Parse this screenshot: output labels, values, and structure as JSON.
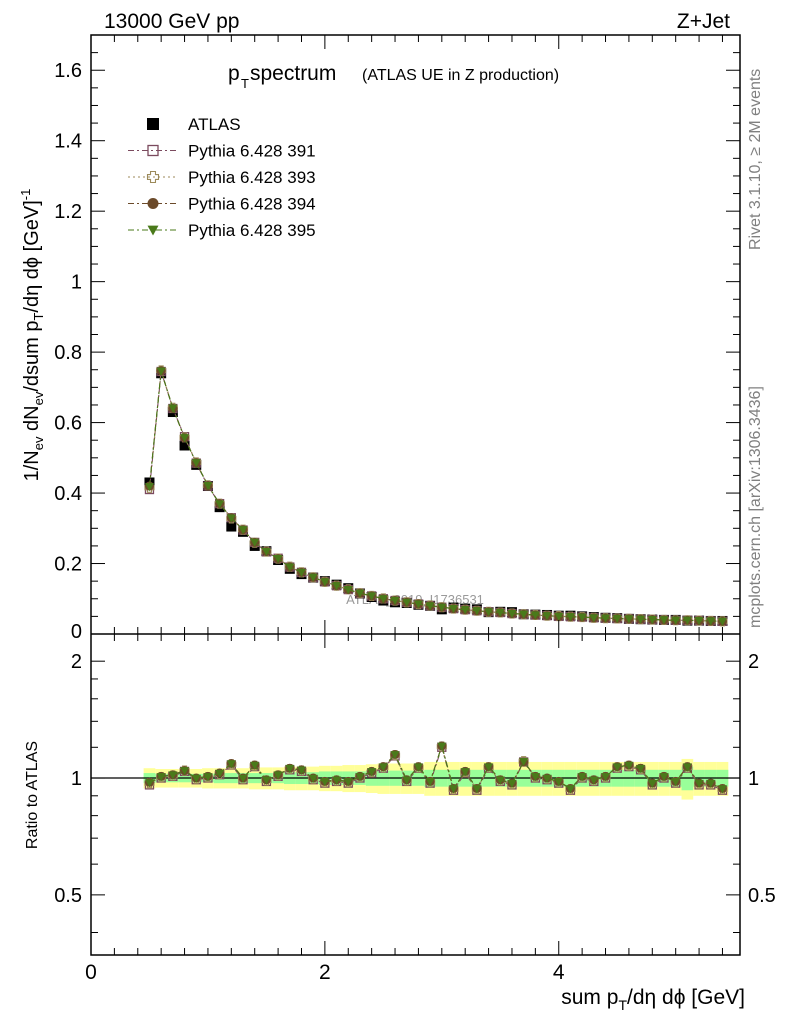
{
  "header": {
    "left": "13000 GeV pp",
    "right": "Z+Jet"
  },
  "title": {
    "main": "p",
    "main_sub": "T",
    "main_rest": " spectrum",
    "paren": "(ATLAS UE in Z production)"
  },
  "side_labels": {
    "rivet": "Rivet 3.1.10, ≥ 2M events",
    "mcplots": "mcplots.cern.ch [arXiv:1306.3436]"
  },
  "watermark": "ATLAS_2019_I1736531",
  "axes": {
    "xlabel": "sum p_T/dη dϕ [GeV]",
    "ylabel_top": "1/N_ev dN_ev/dsum p_T/dη dϕ [GeV]^-1",
    "ylabel_bottom": "Ratio to ATLAS"
  },
  "legend": [
    {
      "label": "ATLAS",
      "marker": "filled-square",
      "color": "#000000"
    },
    {
      "label": "Pythia 6.428 391",
      "marker": "open-square",
      "color": "#7b4a5e"
    },
    {
      "label": "Pythia 6.428 393",
      "marker": "open-cross",
      "color": "#9c8a5a"
    },
    {
      "label": "Pythia 6.428 394",
      "marker": "filled-circle",
      "color": "#6b4a2a"
    },
    {
      "label": "Pythia 6.428 395",
      "marker": "filled-triangle-down",
      "color": "#4a7a1a"
    }
  ],
  "chart_data": [
    {
      "type": "scatter",
      "panel": "main",
      "xlim": [
        0,
        5.55
      ],
      "ylim": [
        0,
        1.7
      ],
      "x_ticks": [
        0,
        2,
        4
      ],
      "y_ticks": [
        0.2,
        0.4,
        0.6,
        0.8,
        1,
        1.2,
        1.4,
        1.6
      ],
      "y_tick_labels": [
        "0.2",
        "0.4",
        "0.6",
        "0.8",
        "1",
        "1.2",
        "1.4",
        "1.6"
      ],
      "x": [
        0.5,
        0.6,
        0.7,
        0.8,
        0.9,
        1.0,
        1.1,
        1.2,
        1.3,
        1.4,
        1.5,
        1.6,
        1.7,
        1.8,
        1.9,
        2.0,
        2.1,
        2.2,
        2.3,
        2.4,
        2.5,
        2.6,
        2.7,
        2.8,
        2.9,
        3.0,
        3.1,
        3.2,
        3.3,
        3.4,
        3.5,
        3.6,
        3.7,
        3.8,
        3.9,
        4.0,
        4.1,
        4.2,
        4.3,
        4.4,
        4.5,
        4.6,
        4.7,
        4.8,
        4.9,
        5.0,
        5.1,
        5.2,
        5.3,
        5.4
      ],
      "series": [
        {
          "name": "ATLAS",
          "values": [
            0.43,
            0.74,
            0.63,
            0.535,
            0.48,
            0.42,
            0.36,
            0.305,
            0.29,
            0.25,
            0.235,
            0.21,
            0.185,
            0.17,
            0.16,
            0.15,
            0.14,
            0.13,
            0.115,
            0.105,
            0.095,
            0.09,
            0.088,
            0.083,
            0.08,
            0.07,
            0.075,
            0.072,
            0.07,
            0.062,
            0.063,
            0.062,
            0.056,
            0.055,
            0.054,
            0.052,
            0.052,
            0.05,
            0.048,
            0.046,
            0.045,
            0.043,
            0.042,
            0.041,
            0.04,
            0.04,
            0.038,
            0.038,
            0.037,
            0.037
          ]
        },
        {
          "name": "Pythia 6.428 391",
          "values": [
            0.41,
            0.745,
            0.64,
            0.56,
            0.485,
            0.42,
            0.37,
            0.33,
            0.295,
            0.26,
            0.233,
            0.215,
            0.19,
            0.175,
            0.16,
            0.148,
            0.137,
            0.126,
            0.115,
            0.108,
            0.1,
            0.095,
            0.09,
            0.085,
            0.08,
            0.076,
            0.072,
            0.069,
            0.066,
            0.063,
            0.061,
            0.058,
            0.056,
            0.054,
            0.052,
            0.05,
            0.049,
            0.048,
            0.046,
            0.045,
            0.044,
            0.043,
            0.042,
            0.041,
            0.04,
            0.039,
            0.039,
            0.038,
            0.037,
            0.036
          ]
        },
        {
          "name": "Pythia 6.428 393",
          "values": [
            0.415,
            0.748,
            0.642,
            0.558,
            0.487,
            0.422,
            0.37,
            0.328,
            0.296,
            0.259,
            0.234,
            0.214,
            0.191,
            0.175,
            0.161,
            0.148,
            0.137,
            0.127,
            0.116,
            0.108,
            0.101,
            0.095,
            0.09,
            0.085,
            0.081,
            0.076,
            0.072,
            0.069,
            0.066,
            0.063,
            0.061,
            0.058,
            0.056,
            0.054,
            0.052,
            0.051,
            0.049,
            0.048,
            0.046,
            0.045,
            0.044,
            0.043,
            0.042,
            0.041,
            0.04,
            0.039,
            0.039,
            0.038,
            0.037,
            0.036
          ]
        },
        {
          "name": "Pythia 6.428 394",
          "values": [
            0.42,
            0.747,
            0.64,
            0.557,
            0.486,
            0.421,
            0.37,
            0.33,
            0.296,
            0.26,
            0.234,
            0.214,
            0.19,
            0.175,
            0.161,
            0.148,
            0.137,
            0.126,
            0.116,
            0.108,
            0.1,
            0.095,
            0.09,
            0.085,
            0.08,
            0.076,
            0.072,
            0.069,
            0.066,
            0.063,
            0.061,
            0.058,
            0.056,
            0.054,
            0.052,
            0.05,
            0.049,
            0.048,
            0.046,
            0.045,
            0.044,
            0.043,
            0.042,
            0.041,
            0.04,
            0.039,
            0.039,
            0.038,
            0.037,
            0.036
          ]
        },
        {
          "name": "Pythia 6.428 395",
          "values": [
            0.418,
            0.746,
            0.641,
            0.557,
            0.486,
            0.421,
            0.369,
            0.329,
            0.296,
            0.26,
            0.234,
            0.214,
            0.19,
            0.175,
            0.161,
            0.148,
            0.137,
            0.126,
            0.116,
            0.108,
            0.1,
            0.095,
            0.09,
            0.085,
            0.08,
            0.076,
            0.072,
            0.069,
            0.066,
            0.063,
            0.061,
            0.058,
            0.056,
            0.054,
            0.052,
            0.05,
            0.049,
            0.048,
            0.046,
            0.045,
            0.044,
            0.043,
            0.042,
            0.041,
            0.04,
            0.039,
            0.039,
            0.038,
            0.037,
            0.036
          ]
        }
      ]
    },
    {
      "type": "scatter",
      "panel": "ratio",
      "ylabel": "Ratio to ATLAS",
      "xlim": [
        0,
        5.55
      ],
      "ylim": [
        0.35,
        2.35
      ],
      "y_scale": "log",
      "x_ticks": [
        0,
        2,
        4
      ],
      "x_tick_labels": [
        "0",
        "2",
        "4"
      ],
      "y_ticks": [
        0.5,
        1,
        2
      ],
      "y_tick_labels": [
        "0.5",
        "1",
        "2"
      ],
      "x": [
        0.5,
        0.6,
        0.7,
        0.8,
        0.9,
        1.0,
        1.1,
        1.2,
        1.3,
        1.4,
        1.5,
        1.6,
        1.7,
        1.8,
        1.9,
        2.0,
        2.1,
        2.2,
        2.3,
        2.4,
        2.5,
        2.6,
        2.7,
        2.8,
        2.9,
        3.0,
        3.1,
        3.2,
        3.3,
        3.4,
        3.5,
        3.6,
        3.7,
        3.8,
        3.9,
        4.0,
        4.1,
        4.2,
        4.3,
        4.4,
        4.5,
        4.6,
        4.7,
        4.8,
        4.9,
        5.0,
        5.1,
        5.2,
        5.3,
        5.4
      ],
      "band_green_halfwidth": [
        0.03,
        0.025,
        0.025,
        0.025,
        0.025,
        0.025,
        0.03,
        0.03,
        0.03,
        0.03,
        0.03,
        0.03,
        0.035,
        0.035,
        0.035,
        0.04,
        0.04,
        0.04,
        0.04,
        0.045,
        0.045,
        0.045,
        0.045,
        0.045,
        0.05,
        0.05,
        0.05,
        0.05,
        0.05,
        0.05,
        0.05,
        0.05,
        0.05,
        0.05,
        0.05,
        0.05,
        0.05,
        0.05,
        0.05,
        0.05,
        0.05,
        0.05,
        0.05,
        0.05,
        0.05,
        0.05,
        0.07,
        0.05,
        0.05,
        0.05
      ],
      "band_yellow_halfwidth": [
        0.06,
        0.055,
        0.055,
        0.055,
        0.055,
        0.06,
        0.06,
        0.06,
        0.06,
        0.065,
        0.065,
        0.065,
        0.07,
        0.07,
        0.07,
        0.075,
        0.075,
        0.08,
        0.08,
        0.085,
        0.09,
        0.09,
        0.09,
        0.09,
        0.1,
        0.1,
        0.1,
        0.1,
        0.1,
        0.1,
        0.1,
        0.1,
        0.1,
        0.1,
        0.1,
        0.1,
        0.1,
        0.1,
        0.1,
        0.1,
        0.1,
        0.1,
        0.1,
        0.1,
        0.1,
        0.1,
        0.12,
        0.1,
        0.1,
        0.1
      ],
      "series": [
        {
          "name": "Pythia 6.428 391",
          "values": [
            0.96,
            1.0,
            1.01,
            1.04,
            0.99,
            1.0,
            1.02,
            1.08,
            0.99,
            1.07,
            0.98,
            1.01,
            1.05,
            1.04,
            0.99,
            0.97,
            0.98,
            0.97,
            1.0,
            1.03,
            1.06,
            1.14,
            0.98,
            1.06,
            0.97,
            1.2,
            0.93,
            1.03,
            0.93,
            1.06,
            0.98,
            0.96,
            1.1,
            1.0,
            0.99,
            0.97,
            0.93,
            1.0,
            0.98,
            1.0,
            1.06,
            1.07,
            1.05,
            0.96,
            1.0,
            0.97,
            1.06,
            0.96,
            0.96,
            0.93
          ]
        },
        {
          "name": "Pythia 6.428 393",
          "values": [
            0.97,
            1.005,
            1.015,
            1.045,
            0.995,
            1.005,
            1.025,
            1.085,
            0.995,
            1.075,
            0.985,
            1.015,
            1.055,
            1.045,
            0.995,
            0.975,
            0.985,
            0.975,
            1.005,
            1.035,
            1.065,
            1.145,
            0.985,
            1.065,
            0.975,
            1.205,
            0.935,
            1.035,
            0.935,
            1.065,
            0.985,
            0.965,
            1.105,
            1.005,
            0.995,
            0.975,
            0.935,
            1.005,
            0.985,
            1.005,
            1.065,
            1.075,
            1.055,
            0.965,
            1.005,
            0.975,
            1.065,
            0.965,
            0.965,
            0.935
          ]
        },
        {
          "name": "Pythia 6.428 394",
          "values": [
            0.975,
            1.01,
            1.02,
            1.045,
            1.0,
            1.01,
            1.03,
            1.09,
            1.0,
            1.08,
            0.99,
            1.02,
            1.06,
            1.05,
            1.0,
            0.98,
            0.99,
            0.98,
            1.01,
            1.04,
            1.07,
            1.15,
            0.99,
            1.07,
            0.98,
            1.21,
            0.94,
            1.04,
            0.94,
            1.07,
            0.99,
            0.97,
            1.1,
            1.01,
            1.0,
            0.98,
            0.94,
            1.01,
            0.99,
            1.01,
            1.07,
            1.08,
            1.06,
            0.97,
            1.01,
            0.98,
            1.07,
            0.97,
            0.97,
            0.94
          ]
        },
        {
          "name": "Pythia 6.428 395",
          "values": [
            0.972,
            1.008,
            1.018,
            1.044,
            0.998,
            1.008,
            1.028,
            1.088,
            0.998,
            1.078,
            0.988,
            1.018,
            1.058,
            1.048,
            0.998,
            0.978,
            0.988,
            0.978,
            1.008,
            1.038,
            1.068,
            1.148,
            0.988,
            1.068,
            0.978,
            1.208,
            0.938,
            1.038,
            0.938,
            1.068,
            0.988,
            0.968,
            1.102,
            1.008,
            0.998,
            0.978,
            0.938,
            1.008,
            0.988,
            1.008,
            1.068,
            1.078,
            1.058,
            0.968,
            1.008,
            0.978,
            1.068,
            0.968,
            0.968,
            0.938
          ]
        }
      ]
    }
  ]
}
